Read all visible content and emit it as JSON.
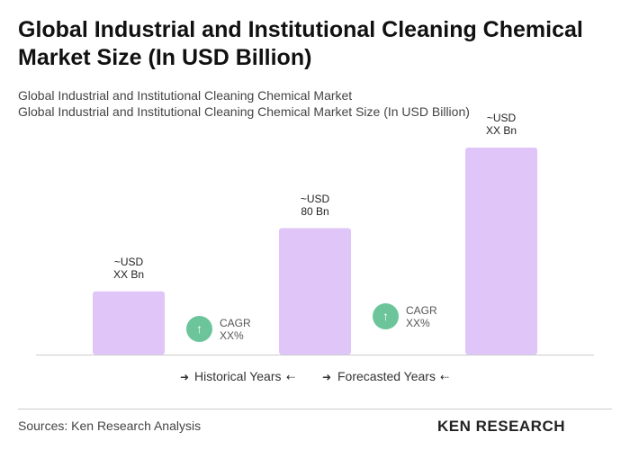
{
  "header": {
    "title": "Global Industrial and Institutional Cleaning Chemical Market Size (In USD Billion)"
  },
  "chart_data": {
    "type": "bar",
    "title": "Global Industrial and Institutional Cleaning Chemical Market",
    "subtitle": "Global Industrial and Institutional Cleaning Chemical Market Size (In USD Billion)",
    "categories": [
      null,
      null,
      null
    ],
    "values": [
      40,
      80,
      131
    ],
    "value_labels": [
      "~USD\nXX Bn",
      "~USD\n80 Bn",
      "~USD\nXX Bn"
    ],
    "color": "#dfc5f8",
    "annotations": [
      "CAGR\nXX%",
      "CAGR\nXX%"
    ],
    "periods": [
      "Historical Years",
      "Forecasted Years"
    ]
  },
  "footer": {
    "source": "Sources: Ken Research Analysis",
    "logo": "KEN RESEARCH"
  }
}
